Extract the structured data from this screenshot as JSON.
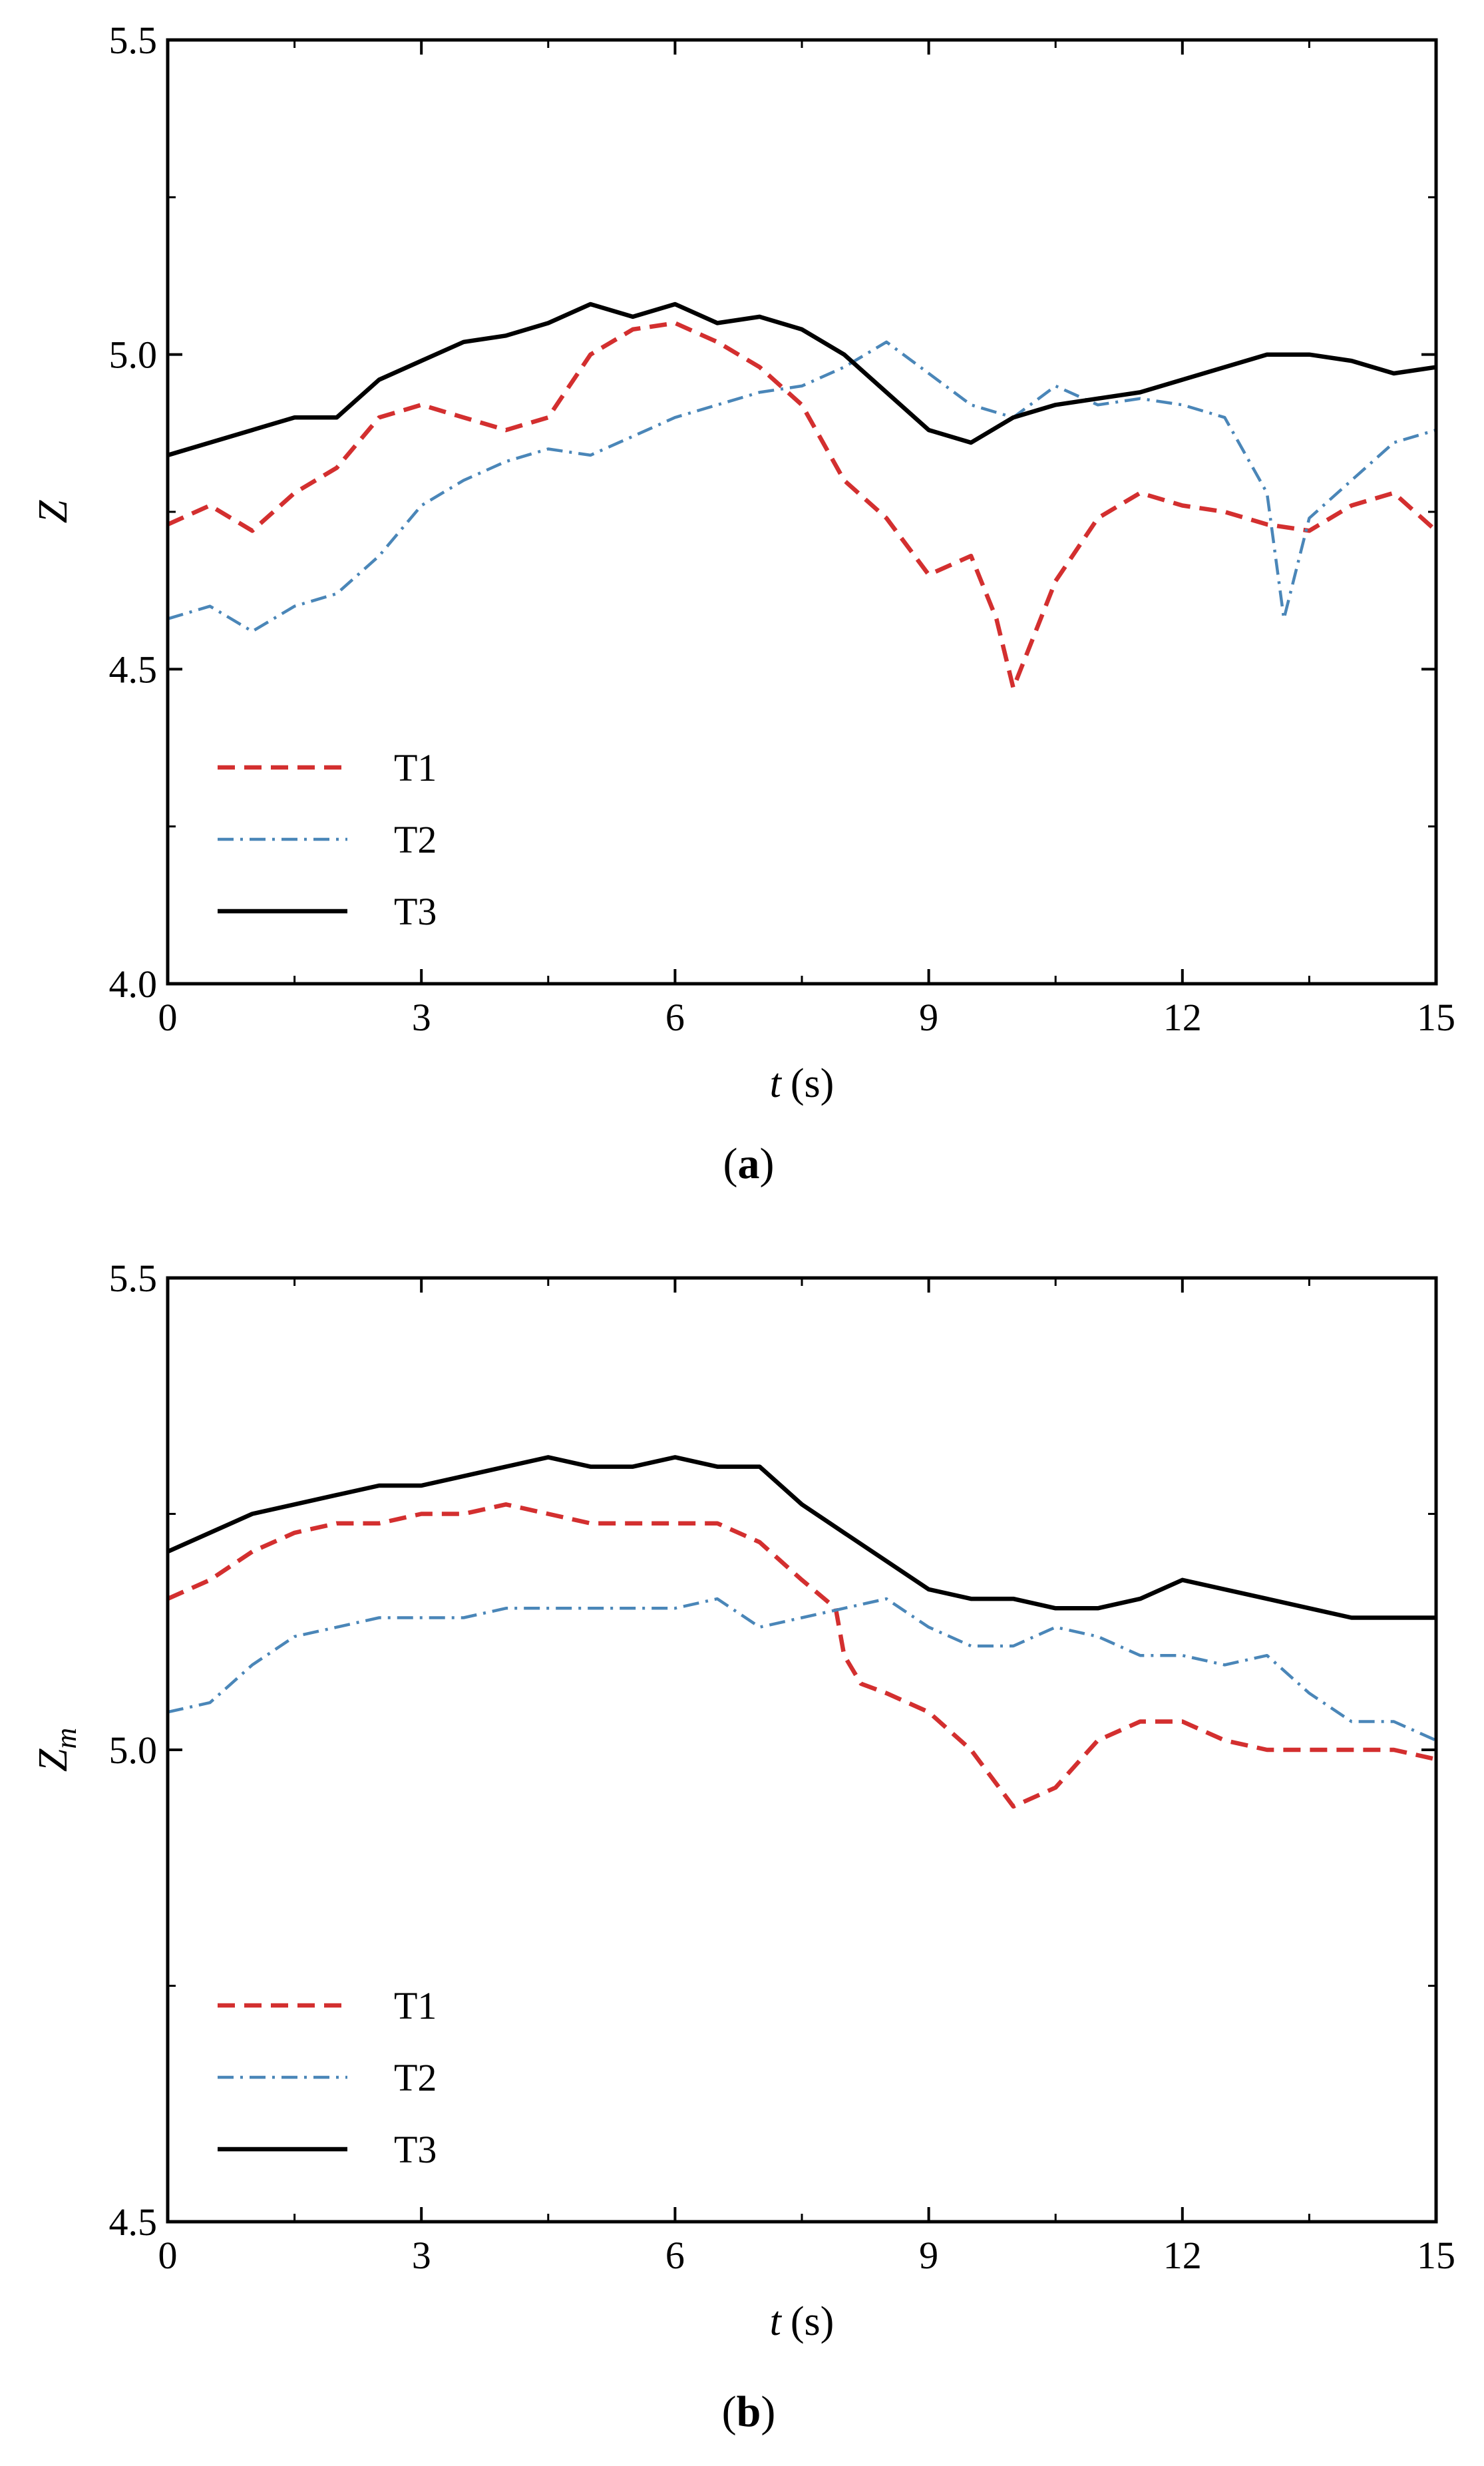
{
  "chart_data": [
    {
      "panel": "a",
      "panel_label": [
        "(",
        "a",
        ")"
      ],
      "type": "line",
      "xlabel": "t",
      "xunit": "(s)",
      "ylabel": "Z",
      "ylabel_sub": "",
      "xlim": [
        0,
        15
      ],
      "ylim": [
        4.0,
        5.5
      ],
      "xticks": [
        0,
        3,
        6,
        9,
        12,
        15
      ],
      "xtick_labels": [
        "0",
        "3",
        "6",
        "9",
        "12",
        "15"
      ],
      "yticks": [
        4.0,
        4.5,
        5.0,
        5.5
      ],
      "ytick_labels": [
        "4.0",
        "4.5",
        "5.0",
        "5.5"
      ],
      "legend_position": "lower-left",
      "series": [
        {
          "name": "T1",
          "style": "dashed",
          "color": "#d32f2f",
          "x": [
            0,
            0.5,
            1,
            1.5,
            2,
            2.5,
            3,
            3.5,
            4,
            4.5,
            5,
            5.5,
            6,
            6.5,
            7,
            7.5,
            8,
            8.5,
            9,
            9.5,
            9.8,
            10,
            10.5,
            11,
            11.5,
            12,
            12.5,
            13,
            13.5,
            14,
            14.5,
            15
          ],
          "y": [
            4.73,
            4.76,
            4.72,
            4.78,
            4.82,
            4.9,
            4.92,
            4.9,
            4.88,
            4.9,
            5.0,
            5.04,
            5.05,
            5.02,
            4.98,
            4.92,
            4.8,
            4.74,
            4.65,
            4.68,
            4.58,
            4.47,
            4.64,
            4.74,
            4.78,
            4.76,
            4.75,
            4.73,
            4.72,
            4.76,
            4.78,
            4.72
          ]
        },
        {
          "name": "T2",
          "style": "dashdot",
          "color": "#4a86b8",
          "x": [
            0,
            0.5,
            1,
            1.5,
            2,
            2.5,
            3,
            3.5,
            4,
            4.5,
            5,
            5.5,
            6,
            6.5,
            7,
            7.5,
            8,
            8.5,
            9,
            9.5,
            10,
            10.5,
            11,
            11.5,
            12,
            12.5,
            13,
            13.2,
            13.5,
            14,
            14.5,
            15
          ],
          "y": [
            4.58,
            4.6,
            4.56,
            4.6,
            4.62,
            4.68,
            4.76,
            4.8,
            4.83,
            4.85,
            4.84,
            4.87,
            4.9,
            4.92,
            4.94,
            4.95,
            4.98,
            5.02,
            4.97,
            4.92,
            4.9,
            4.95,
            4.92,
            4.93,
            4.92,
            4.9,
            4.78,
            4.58,
            4.74,
            4.8,
            4.86,
            4.88
          ]
        },
        {
          "name": "T3",
          "style": "solid",
          "color": "#000000",
          "x": [
            0,
            0.5,
            1,
            1.5,
            2,
            2.5,
            3,
            3.5,
            4,
            4.5,
            5,
            5.5,
            6,
            6.5,
            7,
            7.5,
            8,
            8.5,
            9,
            9.5,
            10,
            10.5,
            11,
            11.5,
            12,
            12.5,
            13,
            13.5,
            14,
            14.5,
            15
          ],
          "y": [
            4.84,
            4.86,
            4.88,
            4.9,
            4.9,
            4.96,
            4.99,
            5.02,
            5.03,
            5.05,
            5.08,
            5.06,
            5.08,
            5.05,
            5.06,
            5.04,
            5.0,
            4.94,
            4.88,
            4.86,
            4.9,
            4.92,
            4.93,
            4.94,
            4.96,
            4.98,
            5.0,
            5.0,
            4.99,
            4.97,
            4.98
          ]
        }
      ]
    },
    {
      "panel": "b",
      "panel_label": [
        "(",
        "b",
        ")"
      ],
      "type": "line",
      "xlabel": "t",
      "xunit": "(s)",
      "ylabel": "Z",
      "ylabel_sub": "m",
      "xlim": [
        0,
        15
      ],
      "ylim": [
        4.5,
        5.5
      ],
      "xticks": [
        0,
        3,
        6,
        9,
        12,
        15
      ],
      "xtick_labels": [
        "0",
        "3",
        "6",
        "9",
        "12",
        "15"
      ],
      "yticks": [
        4.5,
        5.0,
        5.5
      ],
      "ytick_labels": [
        "4.5",
        "5.0",
        "5.5"
      ],
      "legend_position": "lower-left",
      "series": [
        {
          "name": "T1",
          "style": "dashed",
          "color": "#d32f2f",
          "x": [
            0,
            0.5,
            1,
            1.5,
            2,
            2.5,
            3,
            3.5,
            4,
            4.5,
            5,
            5.5,
            6,
            6.5,
            7,
            7.5,
            7.9,
            8.0,
            8.2,
            8.5,
            9,
            9.5,
            10,
            10.5,
            11,
            11.5,
            12,
            12.5,
            13,
            13.5,
            14,
            14.5,
            15
          ],
          "y": [
            5.16,
            5.18,
            5.21,
            5.23,
            5.24,
            5.24,
            5.25,
            5.25,
            5.26,
            5.25,
            5.24,
            5.24,
            5.24,
            5.24,
            5.22,
            5.18,
            5.15,
            5.1,
            5.07,
            5.06,
            5.04,
            5.0,
            4.94,
            4.96,
            5.01,
            5.03,
            5.03,
            5.01,
            5.0,
            5.0,
            5.0,
            5.0,
            4.99
          ]
        },
        {
          "name": "T2",
          "style": "dashdot",
          "color": "#4a86b8",
          "x": [
            0,
            0.5,
            1,
            1.5,
            2,
            2.5,
            3,
            3.5,
            4,
            4.5,
            5,
            5.5,
            6,
            6.5,
            7,
            7.5,
            8,
            8.5,
            9,
            9.5,
            10,
            10.5,
            11,
            11.5,
            12,
            12.5,
            13,
            13.5,
            14,
            14.5,
            15
          ],
          "y": [
            5.04,
            5.05,
            5.09,
            5.12,
            5.13,
            5.14,
            5.14,
            5.14,
            5.15,
            5.15,
            5.15,
            5.15,
            5.15,
            5.16,
            5.13,
            5.14,
            5.15,
            5.16,
            5.13,
            5.11,
            5.11,
            5.13,
            5.12,
            5.1,
            5.1,
            5.09,
            5.1,
            5.06,
            5.03,
            5.03,
            5.01
          ]
        },
        {
          "name": "T3",
          "style": "solid",
          "color": "#000000",
          "x": [
            0,
            0.5,
            1,
            1.5,
            2,
            2.5,
            3,
            3.5,
            4,
            4.5,
            5,
            5.5,
            6,
            6.5,
            7,
            7.5,
            8,
            8.5,
            9,
            9.5,
            10,
            10.5,
            11,
            11.5,
            12,
            12.5,
            13,
            13.5,
            14,
            14.5,
            15
          ],
          "y": [
            5.21,
            5.23,
            5.25,
            5.26,
            5.27,
            5.28,
            5.28,
            5.29,
            5.3,
            5.31,
            5.3,
            5.3,
            5.31,
            5.3,
            5.3,
            5.26,
            5.23,
            5.2,
            5.17,
            5.16,
            5.16,
            5.15,
            5.15,
            5.16,
            5.18,
            5.17,
            5.16,
            5.15,
            5.14,
            5.14,
            5.14
          ]
        }
      ]
    }
  ]
}
